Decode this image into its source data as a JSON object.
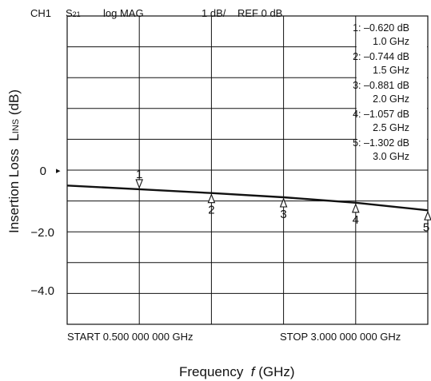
{
  "header": {
    "channel": "CH1",
    "param_main": "S",
    "param_sub": "21",
    "format": "log MAG",
    "scale": "1 dB/",
    "reference": "REF 0 dB"
  },
  "axis": {
    "ylabel_main": "Insertion Loss",
    "ylabel_var_cap": "L",
    "ylabel_var_small": "INS",
    "ylabel_unit": "(dB)",
    "xlabel_main": "Frequency",
    "xlabel_var": "f",
    "xlabel_unit": "(GHz)",
    "start": "START 0.500 000 000 GHz",
    "stop": "STOP 3.000 000 000 GHz",
    "yticks": [
      "0",
      "−2.0",
      "−4.0"
    ],
    "ref_arrow": "▸"
  },
  "markers": [
    {
      "id": "1",
      "value": "1: –0.620 dB",
      "freq": "1.0 GHz"
    },
    {
      "id": "2",
      "value": "2: –0.744 dB",
      "freq": "1.5 GHz"
    },
    {
      "id": "3",
      "value": "3: –0.881 dB",
      "freq": "2.0 GHz"
    },
    {
      "id": "4",
      "value": "4: –1.057 dB",
      "freq": "2.5 GHz"
    },
    {
      "id": "5",
      "value": "5: –1.302 dB",
      "freq": "3.0 GHz"
    }
  ],
  "chart_data": {
    "type": "line",
    "xlim": [
      0.5,
      3.0
    ],
    "ylim": [
      -5,
      5
    ],
    "grid": true,
    "x": [
      0.5,
      1.0,
      1.5,
      2.0,
      2.5,
      3.0
    ],
    "series": [
      {
        "values": [
          -0.5,
          -0.62,
          -0.744,
          -0.881,
          -1.057,
          -1.302
        ]
      }
    ],
    "marker_points": [
      {
        "label": "1",
        "x": 1.0,
        "y": -0.62,
        "placement": "above"
      },
      {
        "label": "2",
        "x": 1.5,
        "y": -0.744,
        "placement": "below"
      },
      {
        "label": "3",
        "x": 2.0,
        "y": -0.881,
        "placement": "below"
      },
      {
        "label": "4",
        "x": 2.5,
        "y": -1.057,
        "placement": "below"
      },
      {
        "label": "5",
        "x": 3.0,
        "y": -1.302,
        "placement": "below"
      }
    ]
  }
}
